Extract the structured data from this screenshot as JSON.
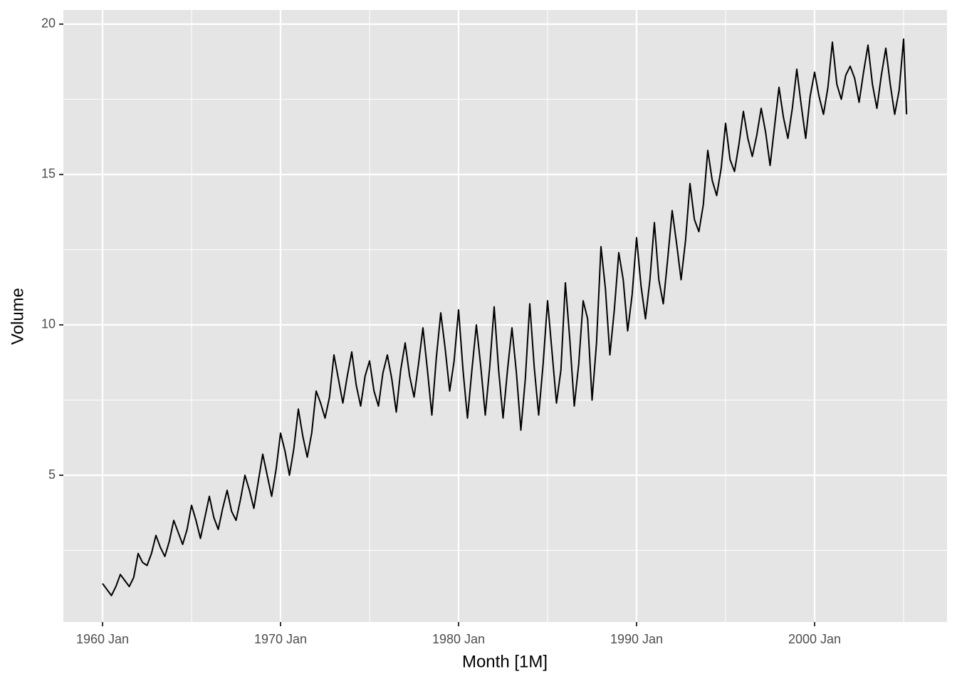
{
  "chart_data": {
    "type": "line",
    "x_label": "Month [1M]",
    "y_label": "Volume",
    "color": "#000000",
    "grid": true,
    "xlim": [
      1957.8,
      2007.44
    ],
    "xticks": [
      {
        "value": 1960,
        "label": "1960 Jan"
      },
      {
        "value": 1970,
        "label": "1970 Jan"
      },
      {
        "value": 1980,
        "label": "1980 Jan"
      },
      {
        "value": 1990,
        "label": "1990 Jan"
      },
      {
        "value": 2000,
        "label": "2000 Jan"
      }
    ],
    "xminorticks": [
      1965,
      1975,
      1985,
      1995,
      2005
    ],
    "ylim": [
      0.12,
      20.47
    ],
    "yticks": [
      5,
      10,
      15,
      20
    ],
    "yminorticks": [
      2.5,
      7.5,
      12.5,
      17.5
    ],
    "x": [
      "1960 Jan",
      "1960 Apr",
      "1960 Jul",
      "1960 Oct",
      "1961 Jan",
      "1961 Apr",
      "1961 Jul",
      "1961 Oct",
      "1962 Jan",
      "1962 Apr",
      "1962 Jul",
      "1962 Oct",
      "1963 Jan",
      "1963 Apr",
      "1963 Jul",
      "1963 Oct",
      "1964 Jan",
      "1964 Apr",
      "1964 Jul",
      "1964 Oct",
      "1965 Jan",
      "1965 Apr",
      "1965 Jul",
      "1965 Oct",
      "1966 Jan",
      "1966 Apr",
      "1966 Jul",
      "1966 Oct",
      "1967 Jan",
      "1967 Apr",
      "1967 Jul",
      "1967 Oct",
      "1968 Jan",
      "1968 Apr",
      "1968 Jul",
      "1968 Oct",
      "1969 Jan",
      "1969 Apr",
      "1969 Jul",
      "1969 Oct",
      "1970 Jan",
      "1970 Apr",
      "1970 Jul",
      "1970 Oct",
      "1971 Jan",
      "1971 Apr",
      "1971 Jul",
      "1971 Oct",
      "1972 Jan",
      "1972 Apr",
      "1972 Jul",
      "1972 Oct",
      "1973 Jan",
      "1973 Apr",
      "1973 Jul",
      "1973 Oct",
      "1974 Jan",
      "1974 Apr",
      "1974 Jul",
      "1974 Oct",
      "1975 Jan",
      "1975 Apr",
      "1975 Jul",
      "1975 Oct",
      "1976 Jan",
      "1976 Apr",
      "1976 Jul",
      "1976 Oct",
      "1977 Jan",
      "1977 Apr",
      "1977 Jul",
      "1977 Oct",
      "1978 Jan",
      "1978 Apr",
      "1978 Jul",
      "1978 Oct",
      "1979 Jan",
      "1979 Apr",
      "1979 Jul",
      "1979 Oct",
      "1980 Jan",
      "1980 Apr",
      "1980 Jul",
      "1980 Oct",
      "1981 Jan",
      "1981 Apr",
      "1981 Jul",
      "1981 Oct",
      "1982 Jan",
      "1982 Apr",
      "1982 Jul",
      "1982 Oct",
      "1983 Jan",
      "1983 Apr",
      "1983 Jul",
      "1983 Oct",
      "1984 Jan",
      "1984 Apr",
      "1984 Jul",
      "1984 Oct",
      "1985 Jan",
      "1985 Apr",
      "1985 Jul",
      "1985 Oct",
      "1986 Jan",
      "1986 Apr",
      "1986 Jul",
      "1986 Oct",
      "1987 Jan",
      "1987 Apr",
      "1987 Jul",
      "1987 Oct",
      "1988 Jan",
      "1988 Apr",
      "1988 Jul",
      "1988 Oct",
      "1989 Jan",
      "1989 Apr",
      "1989 Jul",
      "1989 Oct",
      "1990 Jan",
      "1990 Apr",
      "1990 Jul",
      "1990 Oct",
      "1991 Jan",
      "1991 Apr",
      "1991 Jul",
      "1991 Oct",
      "1992 Jan",
      "1992 Apr",
      "1992 Jul",
      "1992 Oct",
      "1993 Jan",
      "1993 Apr",
      "1993 Jul",
      "1993 Oct",
      "1994 Jan",
      "1994 Apr",
      "1994 Jul",
      "1994 Oct",
      "1995 Jan",
      "1995 Apr",
      "1995 Jul",
      "1995 Oct",
      "1996 Jan",
      "1996 Apr",
      "1996 Jul",
      "1996 Oct",
      "1997 Jan",
      "1997 Apr",
      "1997 Jul",
      "1997 Oct",
      "1998 Jan",
      "1998 Apr",
      "1998 Jul",
      "1998 Oct",
      "1999 Jan",
      "1999 Apr",
      "1999 Jul",
      "1999 Oct",
      "2000 Jan",
      "2000 Apr",
      "2000 Jul",
      "2000 Oct",
      "2001 Jan",
      "2001 Apr",
      "2001 Jul",
      "2001 Oct",
      "2002 Jan",
      "2002 Apr",
      "2002 Jul",
      "2002 Oct",
      "2003 Jan",
      "2003 Apr",
      "2003 Jul",
      "2003 Oct",
      "2004 Jan",
      "2004 Apr",
      "2004 Jul",
      "2004 Oct",
      "2005 Jan",
      "2005 Mar"
    ],
    "values": [
      1.4,
      1.2,
      1.0,
      1.3,
      1.7,
      1.5,
      1.3,
      1.6,
      2.4,
      2.1,
      2.0,
      2.4,
      3.0,
      2.6,
      2.3,
      2.8,
      3.5,
      3.1,
      2.7,
      3.2,
      4.0,
      3.5,
      2.9,
      3.6,
      4.3,
      3.6,
      3.2,
      3.9,
      4.5,
      3.8,
      3.5,
      4.2,
      5.0,
      4.5,
      3.9,
      4.8,
      5.7,
      5.0,
      4.3,
      5.2,
      6.4,
      5.8,
      5.0,
      5.9,
      7.2,
      6.3,
      5.6,
      6.4,
      7.8,
      7.4,
      6.9,
      7.6,
      9.0,
      8.2,
      7.4,
      8.3,
      9.1,
      8.0,
      7.3,
      8.3,
      8.8,
      7.8,
      7.3,
      8.4,
      9.0,
      8.2,
      7.1,
      8.5,
      9.4,
      8.3,
      7.6,
      8.7,
      9.9,
      8.5,
      7.0,
      8.9,
      10.4,
      9.2,
      7.8,
      8.8,
      10.5,
      8.5,
      6.9,
      8.5,
      10.0,
      8.6,
      7.0,
      8.6,
      10.6,
      8.5,
      6.9,
      8.5,
      9.9,
      8.4,
      6.5,
      8.2,
      10.7,
      8.6,
      7.0,
      8.7,
      10.8,
      9.1,
      7.4,
      8.5,
      11.4,
      9.5,
      7.3,
      8.7,
      10.8,
      10.2,
      7.5,
      9.4,
      12.6,
      11.2,
      9.0,
      10.5,
      12.4,
      11.5,
      9.8,
      11.0,
      12.9,
      11.3,
      10.2,
      11.5,
      13.4,
      11.5,
      10.7,
      12.2,
      13.8,
      12.7,
      11.5,
      12.8,
      14.7,
      13.5,
      13.1,
      14.0,
      15.8,
      14.8,
      14.3,
      15.2,
      16.7,
      15.5,
      15.1,
      16.0,
      17.1,
      16.2,
      15.6,
      16.3,
      17.2,
      16.4,
      15.3,
      16.6,
      17.9,
      16.9,
      16.2,
      17.2,
      18.5,
      17.3,
      16.2,
      17.6,
      18.4,
      17.6,
      17.0,
      17.9,
      19.4,
      18.0,
      17.5,
      18.3,
      18.6,
      18.2,
      17.4,
      18.4,
      19.3,
      18.0,
      17.2,
      18.3,
      19.2,
      18.0,
      17.0,
      17.8,
      19.5,
      17.0
    ]
  }
}
